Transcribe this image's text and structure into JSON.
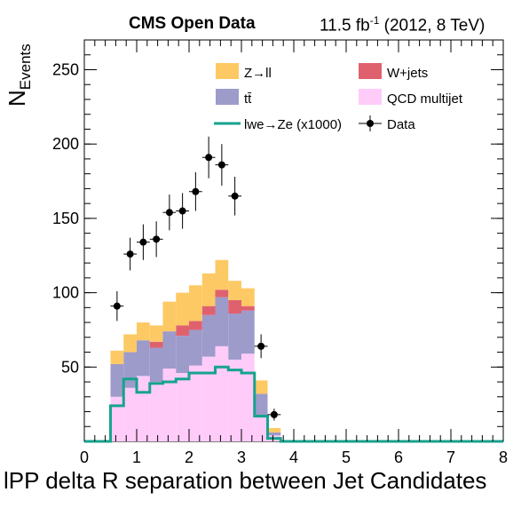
{
  "header": {
    "left": "CMS Open Data",
    "right_prefix": "11.5 fb",
    "right_sup": "-1",
    "right_suffix": " (2012, 8 TeV)"
  },
  "axes": {
    "xlabel": "lPP delta R separation between Jet Candidates",
    "ylabel_main": "N",
    "ylabel_sub": "Events"
  },
  "legend": {
    "zll": "Z→ll",
    "wjets": "W+jets",
    "ttbar": "tt̄",
    "qcd": "QCD multijet",
    "signal": "lwe→Ze (x1000)",
    "data": "Data"
  },
  "colors": {
    "zll": "#fdc965",
    "wjets": "#e0616e",
    "ttbar": "#9d9bca",
    "qcd": "#ffcbf9",
    "signal": "#17a38d",
    "data": "#000000"
  },
  "chart_data": {
    "type": "bar",
    "stacked": true,
    "xlim": [
      0,
      8
    ],
    "ylim": [
      0,
      270
    ],
    "xticks": [
      0,
      1,
      2,
      3,
      4,
      5,
      6,
      7,
      8
    ],
    "yticks": [
      50,
      100,
      150,
      200,
      250
    ],
    "bin_edges": [
      0.5,
      0.75,
      1.0,
      1.25,
      1.5,
      1.75,
      2.0,
      2.25,
      2.5,
      2.75,
      3.0,
      3.25,
      3.5,
      3.75,
      4.0
    ],
    "series": [
      {
        "key": "qcd",
        "name": "QCD multijet",
        "values": [
          30,
          36,
          44,
          40,
          49,
          46,
          51,
          57,
          64,
          55,
          59,
          16,
          4,
          0
        ]
      },
      {
        "key": "ttbar",
        "name": "tt̄",
        "values": [
          22,
          24,
          24,
          23,
          25,
          25,
          24,
          28,
          33,
          31,
          29,
          16,
          2,
          0
        ]
      },
      {
        "key": "wjets",
        "name": "W+jets",
        "values": [
          0,
          0,
          0,
          4,
          0,
          7,
          6,
          6,
          5,
          9,
          3,
          0,
          0,
          0
        ]
      },
      {
        "key": "zll",
        "name": "Z→ll",
        "values": [
          9,
          12,
          12,
          11,
          20,
          22,
          24,
          22,
          20,
          13,
          12,
          9,
          3,
          0
        ]
      }
    ],
    "signal": {
      "name": "lwe→Ze (x1000)",
      "values": [
        24,
        42,
        33,
        39,
        40,
        42,
        46,
        46,
        50,
        48,
        46,
        17,
        2,
        0
      ]
    },
    "data": {
      "name": "Data",
      "x": [
        0.625,
        0.875,
        1.125,
        1.375,
        1.625,
        1.875,
        2.125,
        2.375,
        2.625,
        2.875,
        3.125,
        3.375,
        3.625
      ],
      "y": [
        91,
        126,
        134,
        136,
        154,
        155,
        168,
        191,
        186,
        165,
        0,
        64,
        18
      ],
      "yerr": [
        10,
        11,
        12,
        12,
        12,
        12,
        13,
        14,
        14,
        13,
        0,
        8,
        4
      ]
    }
  }
}
